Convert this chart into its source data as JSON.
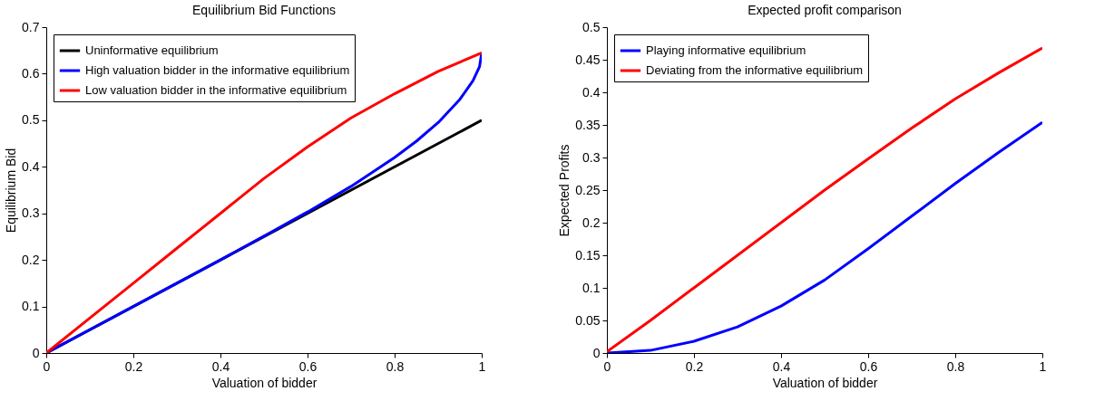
{
  "chart_data": [
    {
      "type": "line",
      "title": "Equilibrium Bid Functions",
      "xlabel": "Valuation of bidder",
      "ylabel": "Equilibrium Bid",
      "xlim": [
        0,
        1
      ],
      "ylim": [
        0,
        0.7
      ],
      "xticks": [
        0,
        0.2,
        0.4,
        0.6,
        0.8,
        1
      ],
      "yticks": [
        0,
        0.1,
        0.2,
        0.3,
        0.4,
        0.5,
        0.6,
        0.7
      ],
      "grid": false,
      "legend": "top left",
      "line_style": "solid",
      "series": [
        {
          "name": "Uninformative equilibrium",
          "color": "#000000",
          "x": [
            0,
            0.5,
            1
          ],
          "values": [
            0,
            0.25,
            0.5
          ]
        },
        {
          "name": "High valuation bidder in the informative equilibrium",
          "color": "#0000ff",
          "x": [
            0,
            0.1,
            0.2,
            0.3,
            0.4,
            0.5,
            0.6,
            0.7,
            0.8,
            0.85,
            0.9,
            0.95,
            0.98,
            0.995,
            1
          ],
          "values": [
            0,
            0.05,
            0.1,
            0.15,
            0.2,
            0.251,
            0.303,
            0.358,
            0.42,
            0.455,
            0.495,
            0.545,
            0.585,
            0.615,
            0.645
          ]
        },
        {
          "name": "Low valuation bidder in the informative equilibrium",
          "color": "#ff0000",
          "x": [
            0,
            0.1,
            0.2,
            0.3,
            0.4,
            0.5,
            0.6,
            0.7,
            0.8,
            0.9,
            1
          ],
          "values": [
            0,
            0.075,
            0.15,
            0.225,
            0.3,
            0.375,
            0.443,
            0.505,
            0.557,
            0.605,
            0.645
          ]
        }
      ]
    },
    {
      "type": "line",
      "title": "Expected profit comparison",
      "xlabel": "Valuation of bidder",
      "ylabel": "Expected Profits",
      "xlim": [
        0,
        1
      ],
      "ylim": [
        0,
        0.5
      ],
      "xticks": [
        0,
        0.2,
        0.4,
        0.6,
        0.8,
        1
      ],
      "yticks": [
        0,
        0.05,
        0.1,
        0.15,
        0.2,
        0.25,
        0.3,
        0.35,
        0.4,
        0.45,
        0.5
      ],
      "grid": false,
      "legend": "top left",
      "line_style": "solid",
      "series": [
        {
          "name": "Playing informative equilibrium",
          "color": "#0000ff",
          "x": [
            0,
            0.1,
            0.2,
            0.3,
            0.4,
            0.5,
            0.6,
            0.7,
            0.8,
            0.9,
            1
          ],
          "values": [
            0,
            0.004,
            0.018,
            0.04,
            0.072,
            0.112,
            0.16,
            0.21,
            0.26,
            0.308,
            0.354
          ]
        },
        {
          "name": "Deviating from the informative equilibrium",
          "color": "#ff0000",
          "x": [
            0,
            0.1,
            0.2,
            0.3,
            0.4,
            0.5,
            0.6,
            0.7,
            0.8,
            0.9,
            1
          ],
          "values": [
            0.002,
            0.05,
            0.1,
            0.15,
            0.2,
            0.25,
            0.298,
            0.345,
            0.39,
            0.43,
            0.468
          ]
        }
      ]
    }
  ]
}
